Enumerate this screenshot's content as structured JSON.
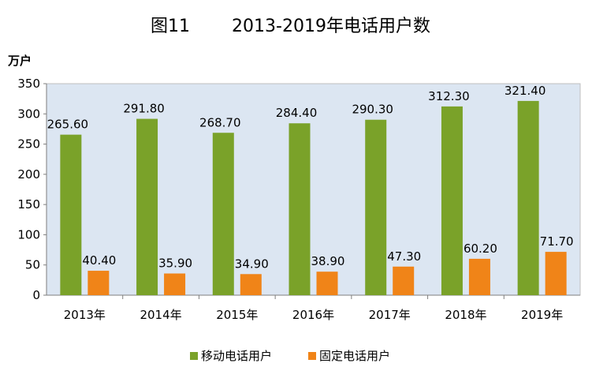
{
  "chart_data": {
    "type": "bar",
    "title_prefix": "图11",
    "title": "2013-2019年电话用户数",
    "ylabel": "万户",
    "xlabel": "",
    "categories": [
      "2013年",
      "2014年",
      "2015年",
      "2016年",
      "2017年",
      "2018年",
      "2019年"
    ],
    "series": [
      {
        "name": "移动电话用户",
        "color": "#7aa229",
        "values": [
          265.6,
          291.8,
          268.7,
          284.4,
          290.3,
          312.3,
          321.4
        ],
        "labels": [
          "265.60",
          "291.80",
          "268.70",
          "284.40",
          "290.30",
          "312.30",
          "321.40"
        ]
      },
      {
        "name": "固定电话用户",
        "color": "#f08418",
        "values": [
          40.4,
          35.9,
          34.9,
          38.9,
          47.3,
          60.2,
          71.7
        ],
        "labels": [
          "40.40",
          "35.90",
          "34.90",
          "38.90",
          "47.30",
          "60.20",
          "71.70"
        ]
      }
    ],
    "ylim": [
      0,
      350
    ],
    "yticks": [
      0,
      50,
      100,
      150,
      200,
      250,
      300,
      350
    ],
    "grid": false,
    "plot_background": "#dce6f2",
    "legend_position": "bottom"
  }
}
